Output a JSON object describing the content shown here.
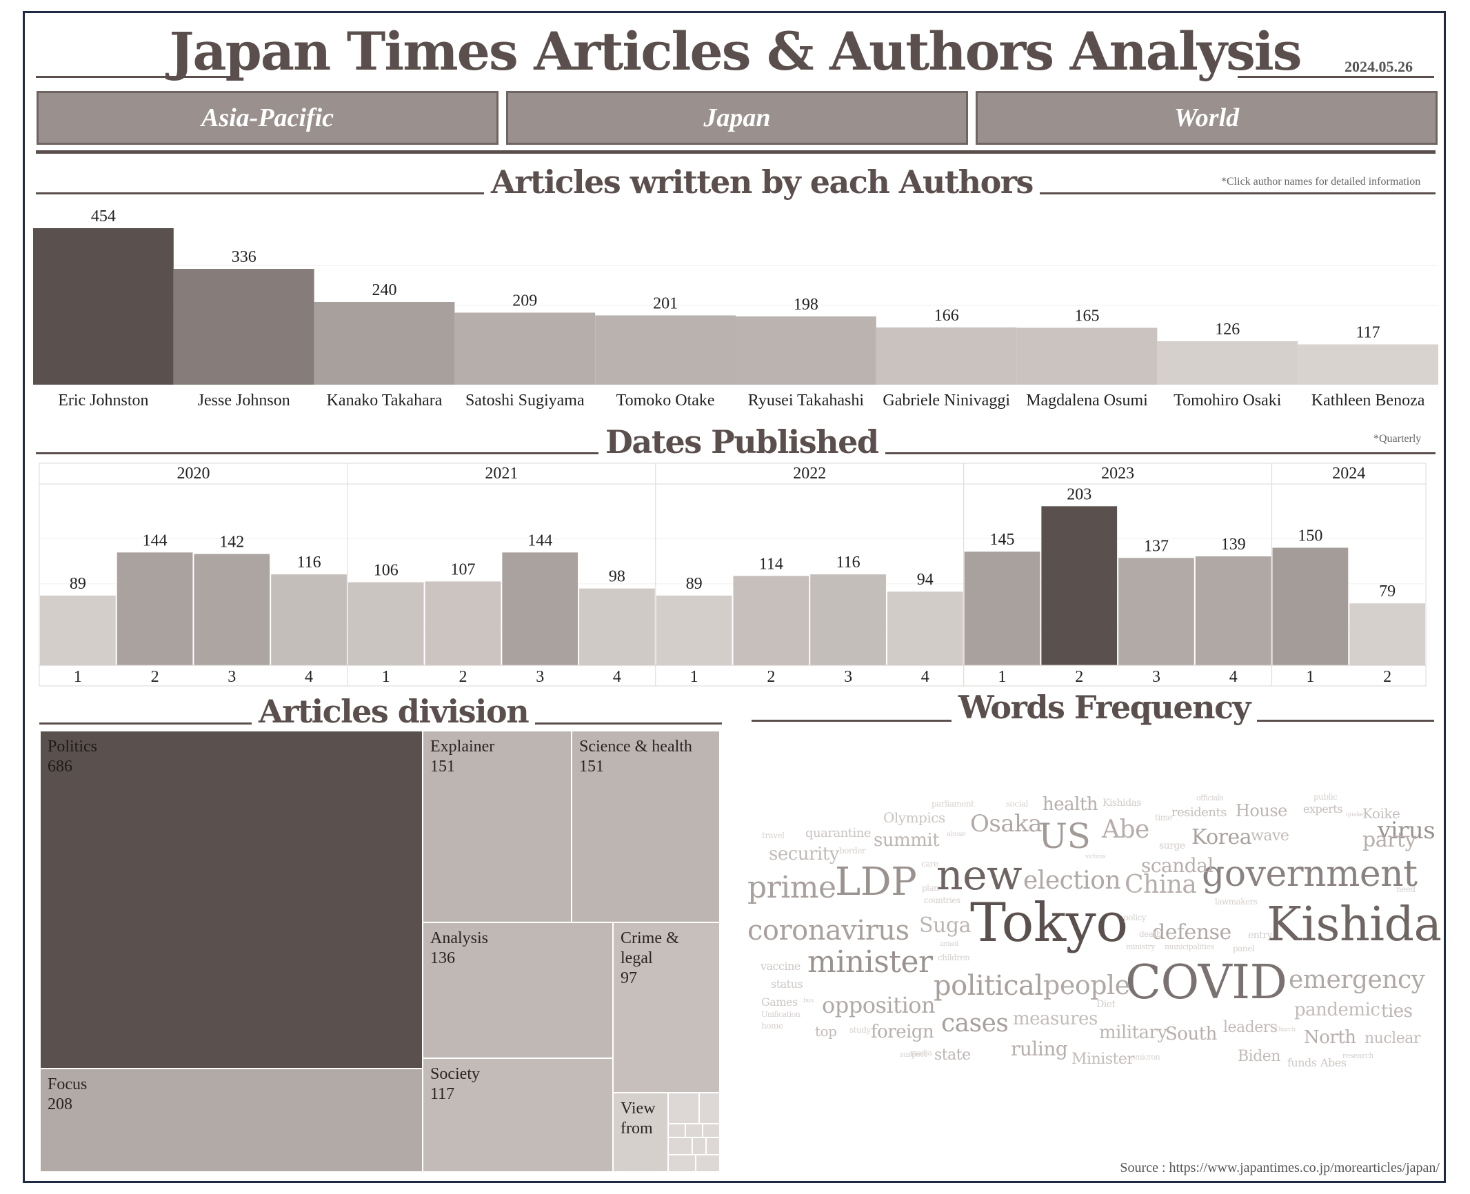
{
  "header": {
    "title": "Japan Times Articles & Authors Analysis",
    "date": "2024.05.26"
  },
  "tabs": [
    {
      "label": "Asia-Pacific"
    },
    {
      "label": "Japan"
    },
    {
      "label": "World"
    }
  ],
  "sections": {
    "authors": {
      "title": "Articles written by each Authors",
      "note": "*Click author names for detailed information"
    },
    "dates": {
      "title": "Dates Published",
      "note": "*Quarterly"
    },
    "division": {
      "title": "Articles division"
    },
    "words": {
      "title": "Words Frequency"
    }
  },
  "source": "Source : https://www.japantimes.co.jp/morearticles/japan/",
  "chart_data": [
    {
      "type": "bar",
      "categories": [
        "Eric Johnston",
        "Jesse Johnson",
        "Kanako Takahara",
        "Satoshi Sugiyama",
        "Tomoko Otake",
        "Ryusei Takahashi",
        "Gabriele Ninivaggi",
        "Magdalena Osumi",
        "Tomohiro Osaki",
        "Kathleen Benoza"
      ],
      "values": [
        454,
        336,
        240,
        209,
        201,
        198,
        166,
        165,
        126,
        117
      ],
      "colors": [
        "#5a504d",
        "#867d7a",
        "#a8a09d",
        "#b6aeab",
        "#b9b2af",
        "#bab3b0",
        "#c9c2bf",
        "#cac3c0",
        "#d6d0cd",
        "#d9d3d0"
      ],
      "ylim": [
        0,
        460
      ]
    },
    {
      "type": "bar",
      "groups": [
        {
          "year": "2020",
          "quarters": [
            "1",
            "2",
            "3",
            "4"
          ],
          "values": [
            89,
            144,
            142,
            116
          ]
        },
        {
          "year": "2021",
          "quarters": [
            "1",
            "2",
            "3",
            "4"
          ],
          "values": [
            106,
            107,
            144,
            98
          ]
        },
        {
          "year": "2022",
          "quarters": [
            "1",
            "2",
            "3",
            "4"
          ],
          "values": [
            89,
            114,
            116,
            94
          ]
        },
        {
          "year": "2023",
          "quarters": [
            "1",
            "2",
            "3",
            "4"
          ],
          "values": [
            145,
            203,
            137,
            139
          ]
        },
        {
          "year": "2024",
          "quarters": [
            "1",
            "2"
          ],
          "values": [
            150,
            79
          ]
        }
      ],
      "ylim": [
        0,
        220
      ]
    },
    {
      "type": "treemap",
      "items": [
        {
          "label": "Politics",
          "value": 686,
          "color": "#5a504d",
          "text_color": "#1e1a19"
        },
        {
          "label": "Focus",
          "value": 208,
          "color": "#b2aaa7",
          "text_color": "#2a2525"
        },
        {
          "label": "Explainer",
          "value": 151,
          "color": "#bcb5b2",
          "text_color": "#2a2525"
        },
        {
          "label": "Science & health",
          "value": 151,
          "color": "#bcb5b2",
          "text_color": "#2a2525"
        },
        {
          "label": "Analysis",
          "value": 136,
          "color": "#bfb8b5",
          "text_color": "#2a2525"
        },
        {
          "label": "Crime &\nlegal",
          "value": 97,
          "color": "#c6bfbc",
          "text_color": "#2a2525"
        },
        {
          "label": "Society",
          "value": 117,
          "color": "#c2bbb8",
          "text_color": "#2a2525"
        },
        {
          "label": "View\nfrom",
          "value": null,
          "color": "#d6d0cd",
          "text_color": "#2a2525"
        }
      ]
    }
  ],
  "word_cloud": [
    {
      "text": "Tokyo",
      "size": 78,
      "color": "#5a504d"
    },
    {
      "text": "Kishida",
      "size": 68,
      "color": "#6e6461"
    },
    {
      "text": "COVID",
      "size": 68,
      "color": "#7a7270"
    },
    {
      "text": "new",
      "size": 60,
      "color": "#6e6461"
    },
    {
      "text": "government",
      "size": 52,
      "color": "#8a8280"
    },
    {
      "text": "LDP",
      "size": 56,
      "color": "#9a928f"
    },
    {
      "text": "prime",
      "size": 44,
      "color": "#a8a09d"
    },
    {
      "text": "US",
      "size": 50,
      "color": "#a29a97"
    },
    {
      "text": "minister",
      "size": 44,
      "color": "#9a928f"
    },
    {
      "text": "coronavirus",
      "size": 40,
      "color": "#a8a09d"
    },
    {
      "text": "political",
      "size": 40,
      "color": "#a8a09d"
    },
    {
      "text": "people",
      "size": 38,
      "color": "#b0a8a5"
    },
    {
      "text": "emergency",
      "size": 36,
      "color": "#b0a8a5"
    },
    {
      "text": "election",
      "size": 36,
      "color": "#b0a8a5"
    },
    {
      "text": "China",
      "size": 36,
      "color": "#b6aeab"
    },
    {
      "text": "Abe",
      "size": 36,
      "color": "#b6aeab"
    },
    {
      "text": "virus",
      "size": 34,
      "color": "#9a928f"
    },
    {
      "text": "Osaka",
      "size": 34,
      "color": "#b0a8a5"
    },
    {
      "text": "opposition",
      "size": 32,
      "color": "#b0a8a5"
    },
    {
      "text": "cases",
      "size": 36,
      "color": "#a8a09d"
    },
    {
      "text": "Korea",
      "size": 30,
      "color": "#a8a09d"
    },
    {
      "text": "party",
      "size": 30,
      "color": "#b6aeab"
    },
    {
      "text": "defense",
      "size": 30,
      "color": "#b0a8a5"
    },
    {
      "text": "Suga",
      "size": 30,
      "color": "#bcb5b2"
    },
    {
      "text": "scandal",
      "size": 28,
      "color": "#b6aeab"
    },
    {
      "text": "summit",
      "size": 26,
      "color": "#bcb5b2"
    },
    {
      "text": "security",
      "size": 26,
      "color": "#c2bbb8"
    },
    {
      "text": "health",
      "size": 26,
      "color": "#b6aeab"
    },
    {
      "text": "foreign",
      "size": 26,
      "color": "#b6aeab"
    },
    {
      "text": "ruling",
      "size": 28,
      "color": "#b6aeab"
    },
    {
      "text": "measures",
      "size": 26,
      "color": "#c2bbb8"
    },
    {
      "text": "military",
      "size": 26,
      "color": "#bcb5b2"
    },
    {
      "text": "South",
      "size": 26,
      "color": "#b6aeab"
    },
    {
      "text": "North",
      "size": 26,
      "color": "#b6aeab"
    },
    {
      "text": "pandemic",
      "size": 26,
      "color": "#c2bbb8"
    },
    {
      "text": "ties",
      "size": 26,
      "color": "#bcb5b2"
    },
    {
      "text": "nuclear",
      "size": 22,
      "color": "#c2bbb8"
    },
    {
      "text": "House",
      "size": 24,
      "color": "#bcb5b2"
    },
    {
      "text": "wave",
      "size": 22,
      "color": "#c2bbb8"
    },
    {
      "text": "state",
      "size": 22,
      "color": "#bcb5b2"
    },
    {
      "text": "Minister",
      "size": 22,
      "color": "#c2bbb8"
    },
    {
      "text": "Biden",
      "size": 22,
      "color": "#c2bbb8"
    },
    {
      "text": "leaders",
      "size": 22,
      "color": "#c2bbb8"
    },
    {
      "text": "Koike",
      "size": 20,
      "color": "#c6bfbc"
    },
    {
      "text": "experts",
      "size": 16,
      "color": "#c6bfbc"
    },
    {
      "text": "residents",
      "size": 18,
      "color": "#c6bfbc"
    },
    {
      "text": "Olympics",
      "size": 20,
      "color": "#cac3c0"
    },
    {
      "text": "quarantine",
      "size": 18,
      "color": "#cac3c0"
    },
    {
      "text": "top",
      "size": 20,
      "color": "#c2bbb8"
    },
    {
      "text": "vaccine",
      "size": 16,
      "color": "#cec8c5"
    },
    {
      "text": "status",
      "size": 16,
      "color": "#cec8c5"
    },
    {
      "text": "Games",
      "size": 16,
      "color": "#cec8c5"
    },
    {
      "text": "funds",
      "size": 16,
      "color": "#cec8c5"
    },
    {
      "text": "Abes",
      "size": 16,
      "color": "#cec8c5"
    },
    {
      "text": "Kishidas",
      "size": 14,
      "color": "#d2ccc9"
    },
    {
      "text": "parliament",
      "size": 12,
      "color": "#d6d0cd"
    },
    {
      "text": "social",
      "size": 12,
      "color": "#d6d0cd"
    },
    {
      "text": "officials",
      "size": 11,
      "color": "#d6d0cd"
    },
    {
      "text": "public",
      "size": 12,
      "color": "#d6d0cd"
    },
    {
      "text": "travel",
      "size": 12,
      "color": "#d6d0cd"
    },
    {
      "text": "time",
      "size": 12,
      "color": "#d6d0cd"
    },
    {
      "text": "abuse",
      "size": 10,
      "color": "#d6d0cd"
    },
    {
      "text": "quake",
      "size": 9,
      "color": "#d6d0cd"
    },
    {
      "text": "surge",
      "size": 14,
      "color": "#d2ccc9"
    },
    {
      "text": "border",
      "size": 12,
      "color": "#d6d0cd"
    },
    {
      "text": "victims",
      "size": 9,
      "color": "#d6d0cd"
    },
    {
      "text": "care",
      "size": 12,
      "color": "#d6d0cd"
    },
    {
      "text": "plan",
      "size": 12,
      "color": "#d6d0cd"
    },
    {
      "text": "countries",
      "size": 12,
      "color": "#d6d0cd"
    },
    {
      "text": "need",
      "size": 12,
      "color": "#d6d0cd"
    },
    {
      "text": "lawmakers",
      "size": 12,
      "color": "#d6d0cd"
    },
    {
      "text": "policy",
      "size": 12,
      "color": "#d6d0cd"
    },
    {
      "text": "death",
      "size": 12,
      "color": "#d6d0cd"
    },
    {
      "text": "entry",
      "size": 14,
      "color": "#d2ccc9"
    },
    {
      "text": "ministry",
      "size": 11,
      "color": "#d6d0cd"
    },
    {
      "text": "municipalities",
      "size": 11,
      "color": "#d6d0cd"
    },
    {
      "text": "panel",
      "size": 12,
      "color": "#d6d0cd"
    },
    {
      "text": "armed",
      "size": 9,
      "color": "#d6d0cd"
    },
    {
      "text": "children",
      "size": 12,
      "color": "#d6d0cd"
    },
    {
      "text": "bus",
      "size": 9,
      "color": "#d6d0cd"
    },
    {
      "text": "Unification",
      "size": 11,
      "color": "#d6d0cd"
    },
    {
      "text": "home",
      "size": 12,
      "color": "#d6d0cd"
    },
    {
      "text": "Diet",
      "size": 14,
      "color": "#d2ccc9"
    },
    {
      "text": "study",
      "size": 12,
      "color": "#d6d0cd"
    },
    {
      "text": "Church",
      "size": 9,
      "color": "#d6d0cd"
    },
    {
      "text": "suspect",
      "size": 11,
      "color": "#d6d0cd"
    },
    {
      "text": "media",
      "size": 11,
      "color": "#d6d0cd"
    },
    {
      "text": "omicron",
      "size": 11,
      "color": "#d6d0cd"
    },
    {
      "text": "research",
      "size": 11,
      "color": "#d6d0cd"
    }
  ]
}
